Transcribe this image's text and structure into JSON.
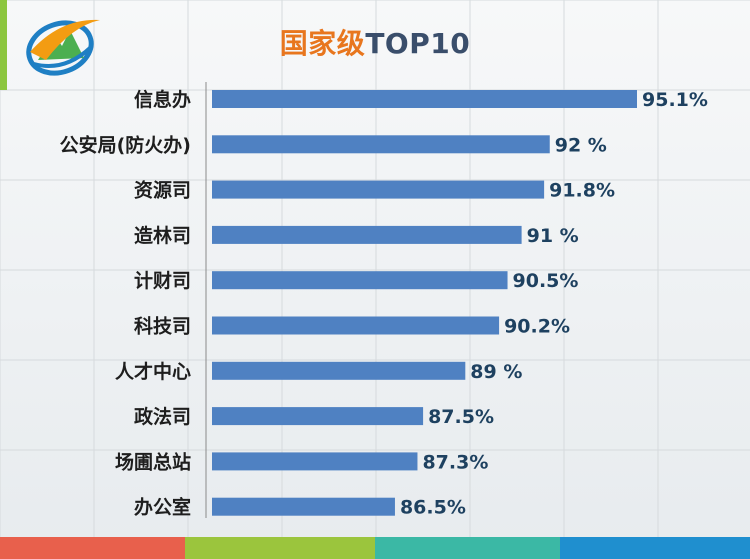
{
  "slide": {
    "title_cn": "国家级",
    "title_en": "TOP10",
    "colors": {
      "title_cn": "#e8761e",
      "title_en": "#3a4e6b",
      "bar": "#4f81c2",
      "left_strip": "#8cc63f",
      "bottom_bar": [
        "#e8604c",
        "#9bc53d",
        "#3bb8a5",
        "#1f8fcf"
      ]
    },
    "logo_icon": "green-mountain-swoosh-logo-icon"
  },
  "chart_data": {
    "type": "bar",
    "orientation": "horizontal",
    "title": "国家级TOP10",
    "xlabel": "",
    "ylabel": "",
    "xlim": [
      80,
      96
    ],
    "grid": true,
    "categories": [
      "信息办",
      "公安局(防火办)",
      "资源司",
      "造林司",
      "计财司",
      "科技司",
      "人才中心",
      "政法司",
      "场圃总站",
      "办公室"
    ],
    "values": [
      95.1,
      92,
      91.8,
      91,
      90.5,
      90.2,
      89,
      87.5,
      87.3,
      86.5
    ],
    "data_labels": [
      "95.1%",
      "92 %",
      "91.8%",
      "91 %",
      "90.5%",
      "90.2%",
      "89 %",
      "87.5%",
      "87.3%",
      "86.5%"
    ],
    "unit": "%"
  }
}
